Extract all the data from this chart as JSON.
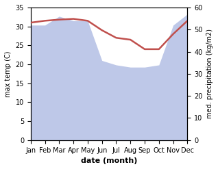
{
  "months": [
    "Jan",
    "Feb",
    "Mar",
    "Apr",
    "May",
    "Jun",
    "Jul",
    "Aug",
    "Sep",
    "Oct",
    "Nov",
    "Dec"
  ],
  "temperature": [
    31.0,
    31.5,
    31.8,
    32.0,
    31.5,
    29.0,
    27.0,
    26.5,
    24.0,
    24.0,
    28.0,
    31.5
  ],
  "precipitation": [
    52,
    52,
    56,
    54,
    54,
    36,
    34,
    33,
    33,
    34,
    52,
    57
  ],
  "temp_color": "#c0504d",
  "precip_fill_color": "#bec8e8",
  "background_color": "#ffffff",
  "ylabel_left": "max temp (C)",
  "ylabel_right": "med. precipitation (kg/m2)",
  "xlabel": "date (month)",
  "ylim_left": [
    0,
    35
  ],
  "ylim_right": [
    0,
    60
  ],
  "temp_linewidth": 1.8
}
